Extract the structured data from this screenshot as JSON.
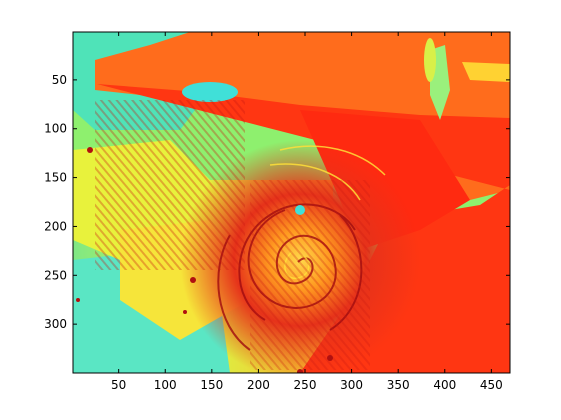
{
  "chart_data": {
    "type": "heatmap",
    "colormap": "jet (upper range: cyan-green-yellow-orange-red-dark red)",
    "x_ticks": [
      50,
      100,
      150,
      200,
      250,
      300,
      350,
      400,
      450
    ],
    "y_ticks": [
      50,
      100,
      150,
      200,
      250,
      300
    ],
    "xlim": [
      1,
      470
    ],
    "ylim": [
      1,
      350
    ],
    "y_axis_reversed": true,
    "grid": false,
    "colors": {
      "cyan": "#3ee0d0",
      "green": "#9cf06a",
      "yellow": "#f6f23a",
      "orange": "#ff8a1c",
      "red": "#ff3a12",
      "dark_red": "#a80c10"
    }
  }
}
